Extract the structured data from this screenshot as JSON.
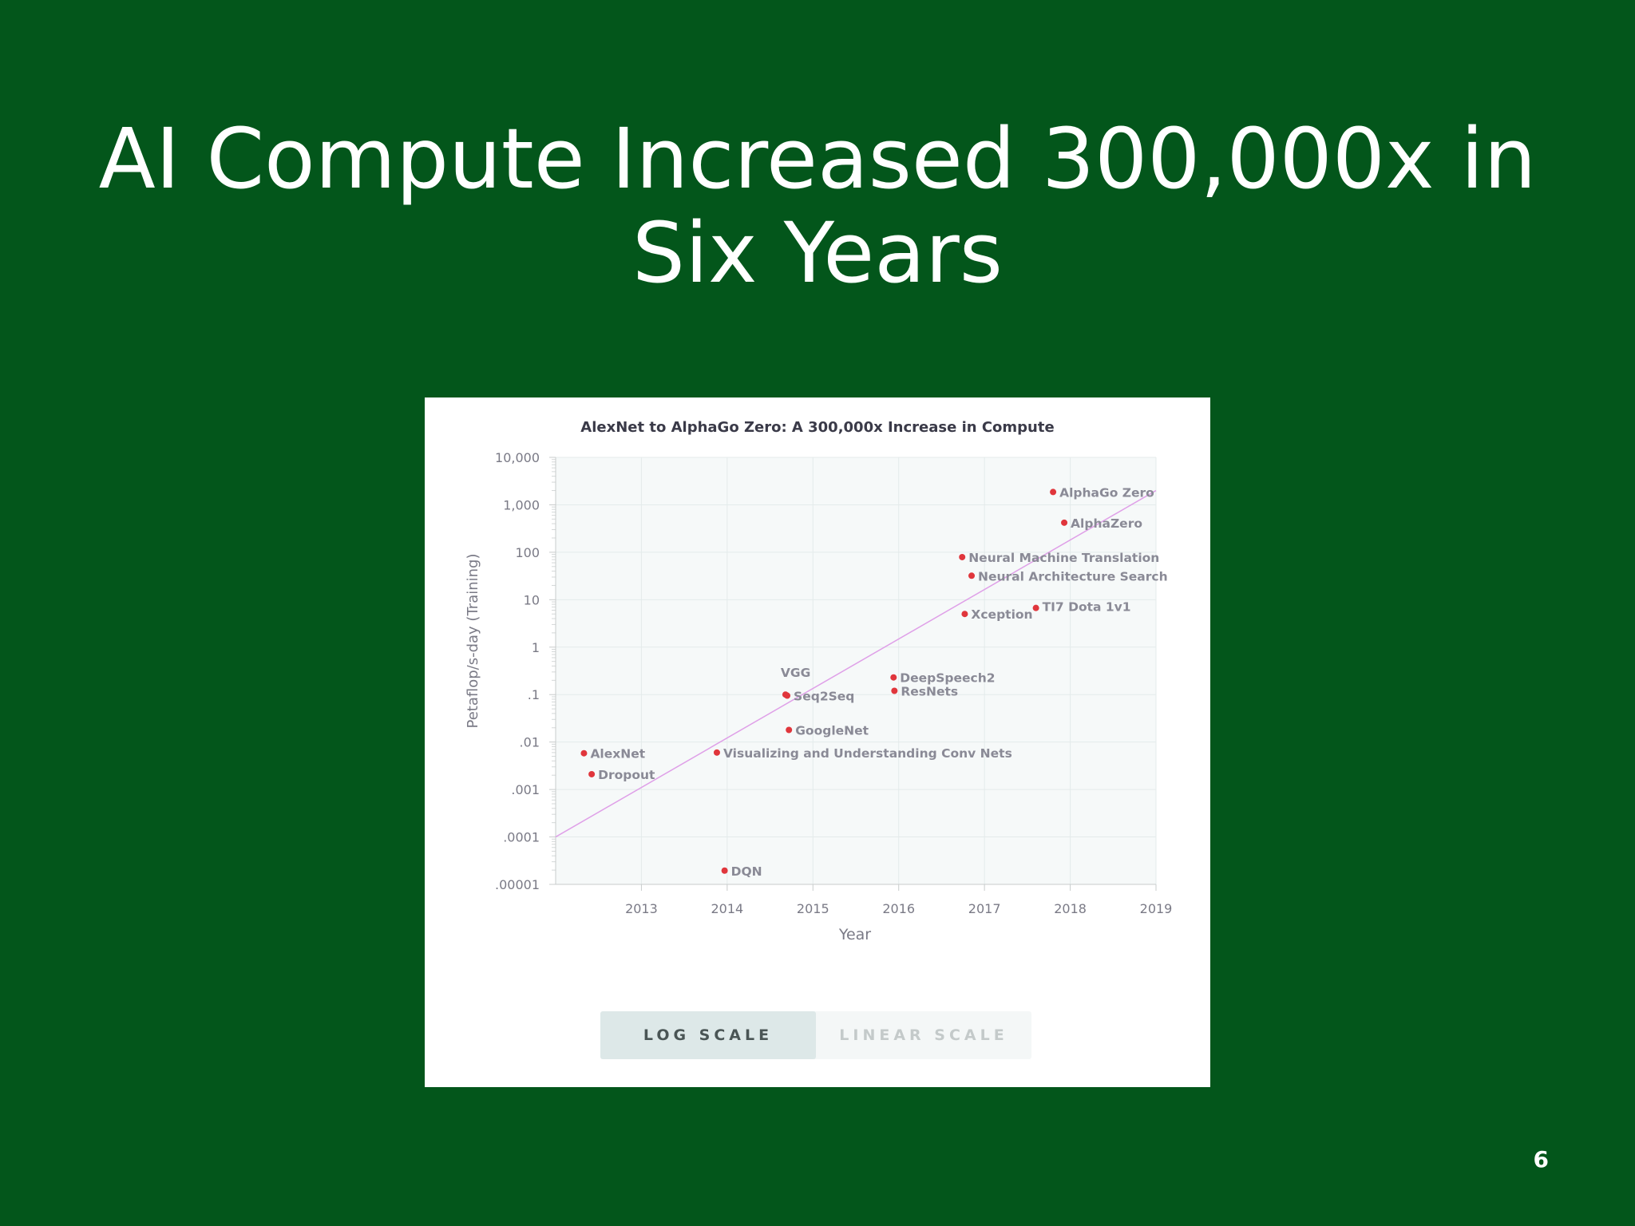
{
  "slide": {
    "title_line1": "AI Compute Increased 300,000x in",
    "title_line2": "Six Years",
    "page_number": "6"
  },
  "toggle": {
    "log_label": "LOG SCALE",
    "linear_label": "LINEAR SCALE",
    "selected": "log"
  },
  "colors": {
    "background": "#03561b",
    "point": "#e0363c",
    "trend": "#dfa0e8",
    "plot_bg": "#f6f9f9",
    "grid": "#e4ebeb",
    "axis_text": "#7a7a86",
    "label_text": "#8a8a96"
  },
  "chart_data": {
    "type": "scatter",
    "title": "AlexNet to AlphaGo Zero: A 300,000x Increase in Compute",
    "xlabel": "Year",
    "ylabel": "Petaflop/s-day (Training)",
    "y_scale": "log",
    "xlim": [
      2012.0,
      2019.0
    ],
    "ylim": [
      1e-05,
      10000
    ],
    "x_ticks": [
      2013,
      2014,
      2015,
      2016,
      2017,
      2018,
      2019
    ],
    "y_ticks": [
      {
        "value": 10000,
        "label": "10,000"
      },
      {
        "value": 1000,
        "label": "1,000"
      },
      {
        "value": 100,
        "label": "100"
      },
      {
        "value": 10,
        "label": "10"
      },
      {
        "value": 1,
        "label": "1"
      },
      {
        "value": 0.1,
        "label": ".1"
      },
      {
        "value": 0.01,
        "label": ".01"
      },
      {
        "value": 0.001,
        "label": ".001"
      },
      {
        "value": 0.0001,
        "label": ".0001"
      },
      {
        "value": 1e-05,
        "label": ".00001"
      }
    ],
    "grid": true,
    "points": [
      {
        "name": "AlexNet",
        "x": 2012.33,
        "y": 0.0058
      },
      {
        "name": "Dropout",
        "x": 2012.42,
        "y": 0.0021
      },
      {
        "name": "DQN",
        "x": 2013.97,
        "y": 1.95e-05
      },
      {
        "name": "Visualizing and Understanding Conv Nets",
        "x": 2013.88,
        "y": 0.006
      },
      {
        "name": "VGG",
        "x": 2014.68,
        "y": 0.1
      },
      {
        "name": "Seq2Seq",
        "x": 2014.7,
        "y": 0.095
      },
      {
        "name": "GoogleNet",
        "x": 2014.72,
        "y": 0.018
      },
      {
        "name": "DeepSpeech2",
        "x": 2015.94,
        "y": 0.23
      },
      {
        "name": "ResNets",
        "x": 2015.95,
        "y": 0.12
      },
      {
        "name": "Xception",
        "x": 2016.77,
        "y": 5.0
      },
      {
        "name": "Neural Machine Translation",
        "x": 2016.74,
        "y": 79
      },
      {
        "name": "Neural Architecture Search",
        "x": 2016.85,
        "y": 32
      },
      {
        "name": "TI7 Dota 1v1",
        "x": 2017.6,
        "y": 6.7
      },
      {
        "name": "AlphaGo Zero",
        "x": 2017.8,
        "y": 1860
      },
      {
        "name": "AlphaZero",
        "x": 2017.93,
        "y": 420
      }
    ],
    "trend_line": {
      "x": [
        2012.0,
        2019.0
      ],
      "y": [
        0.0001,
        2000
      ]
    }
  }
}
